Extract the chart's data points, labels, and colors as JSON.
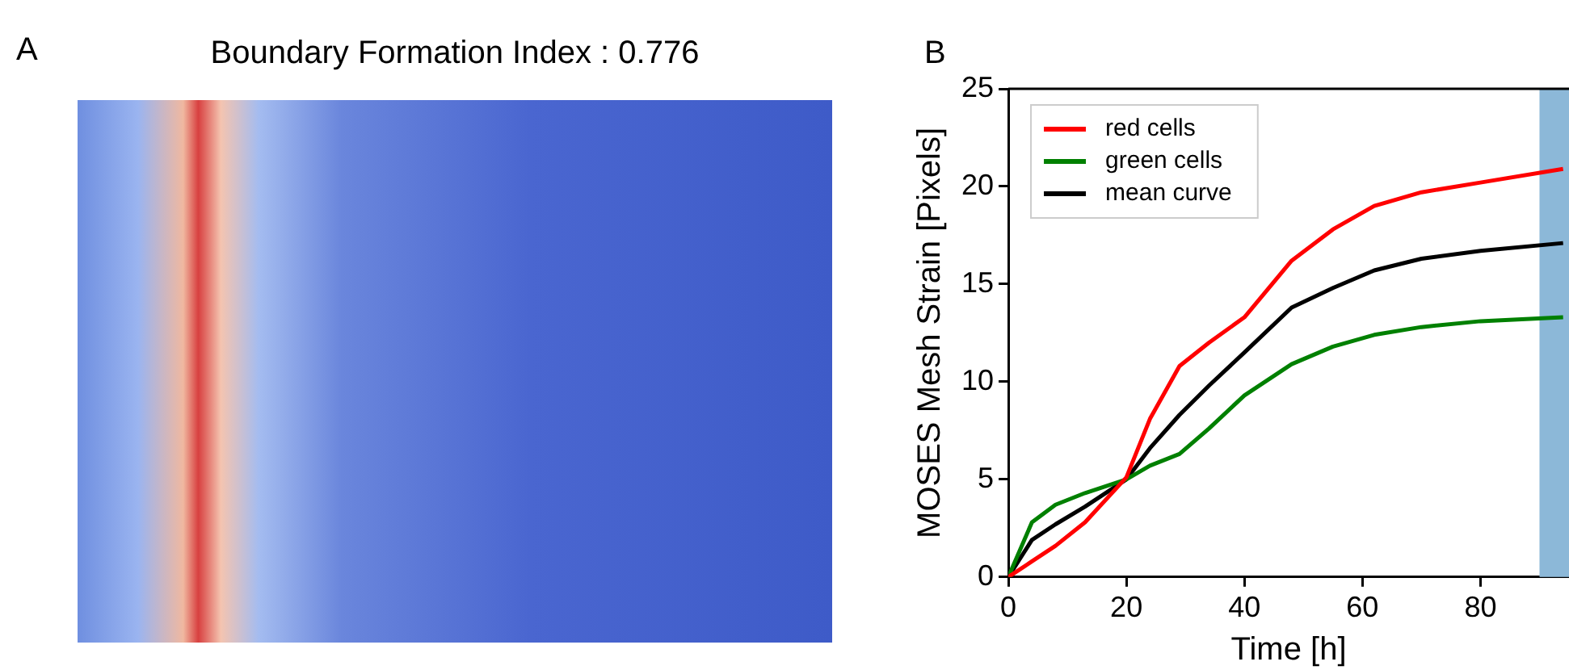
{
  "chart_data": [
    {
      "type": "other",
      "title": "Boundary Formation Index : 0.776",
      "annotations": [
        "A"
      ]
    },
    {
      "type": "line",
      "annotations": [
        "B"
      ],
      "xlabel": "Time [h]",
      "ylabel": "MOSES Mesh Strain [Pixels]",
      "x": [
        0,
        4,
        8,
        13,
        20,
        24,
        29,
        34,
        40,
        48,
        55,
        62,
        70,
        80,
        94
      ],
      "series": [
        {
          "name": "red cells",
          "color": "#ff0000",
          "values": [
            0,
            0.8,
            1.6,
            2.8,
            5.1,
            8.1,
            10.8,
            12.0,
            13.3,
            16.2,
            17.8,
            19.0,
            19.7,
            20.2,
            20.9
          ]
        },
        {
          "name": "green cells",
          "color": "#008000",
          "values": [
            0,
            2.8,
            3.7,
            4.3,
            5.0,
            5.7,
            6.3,
            7.6,
            9.3,
            10.9,
            11.8,
            12.4,
            12.8,
            13.1,
            13.3
          ]
        },
        {
          "name": "mean curve",
          "color": "#000000",
          "values": [
            0,
            1.9,
            2.7,
            3.6,
            5.0,
            6.6,
            8.3,
            9.8,
            11.5,
            13.8,
            14.8,
            15.7,
            16.3,
            16.7,
            17.1
          ]
        }
      ],
      "xlim": [
        0,
        95
      ],
      "xticks": [
        0,
        20,
        40,
        60,
        80
      ],
      "ylim": [
        0,
        25
      ],
      "yticks": [
        0,
        5,
        10,
        15,
        20,
        25
      ],
      "bands": [
        {
          "axis": "x",
          "from": 90,
          "to": 95,
          "color": "#8cb8d8"
        }
      ],
      "legend": "top left",
      "grid": false,
      "marker": "none",
      "line_style": "solid"
    }
  ]
}
